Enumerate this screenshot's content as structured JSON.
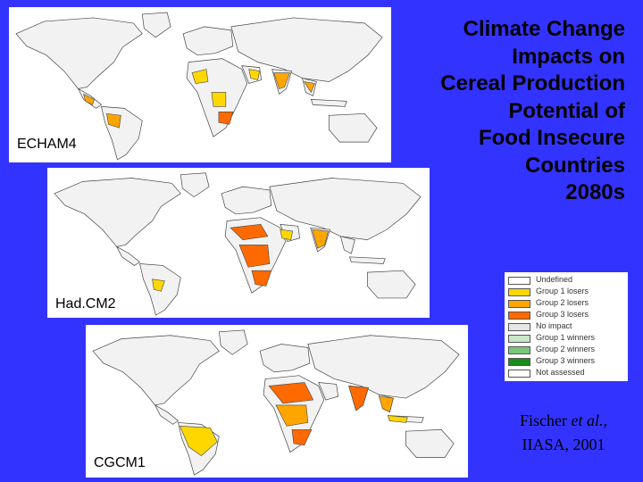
{
  "title": {
    "lines": [
      "Climate Change",
      "Impacts on",
      "Cereal Production",
      "Potential of",
      "Food Insecure",
      "Countries",
      "2080s"
    ]
  },
  "maps": [
    {
      "label": "ECHAM4"
    },
    {
      "label": "Had.CM2"
    },
    {
      "label": "CGCM1"
    }
  ],
  "legend": {
    "items": [
      {
        "label": "Undefined",
        "color": "#ffffff"
      },
      {
        "label": "Group 1 losers",
        "color": "#ffd700"
      },
      {
        "label": "Group 2 losers",
        "color": "#ffa500"
      },
      {
        "label": "Group 3 losers",
        "color": "#ff6a00"
      },
      {
        "label": "No impact",
        "color": "#e6e6e6"
      },
      {
        "label": "Group 1 winners",
        "color": "#c8e6c8"
      },
      {
        "label": "Group 2 winners",
        "color": "#7cc47c"
      },
      {
        "label": "Group 3 winners",
        "color": "#1a8c1a"
      },
      {
        "label": "Not assessed",
        "color": "#ffffff"
      }
    ]
  },
  "credit": {
    "line1_name": "Fischer",
    "line1_etal": "et al.,",
    "line2": "IIASA, 2001"
  },
  "colors": {
    "background": "#3333ff",
    "group1_losers": "#ffd700",
    "group2_losers": "#ffa500",
    "group3_losers": "#ff6a00",
    "land_neutral": "#f2f2f2",
    "outline": "#444444"
  }
}
